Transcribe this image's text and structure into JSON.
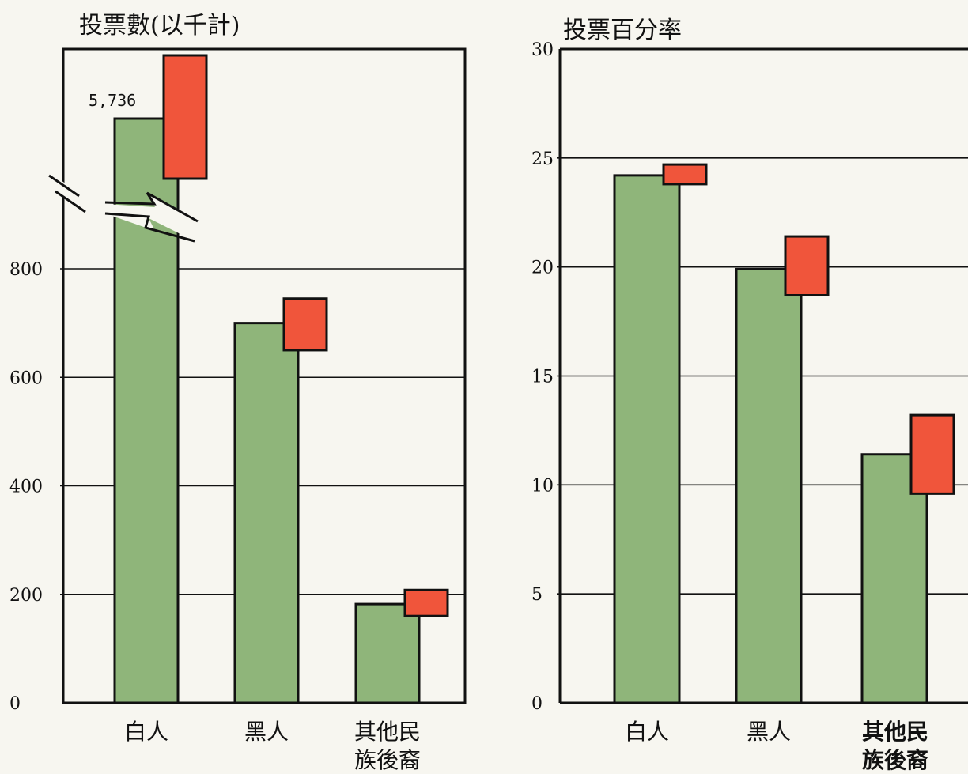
{
  "colors": {
    "green_bar": "#8fb57a",
    "red_box": "#f0553b",
    "frame": "#111111",
    "paper": "#f7f6f0"
  },
  "chart_data": [
    {
      "type": "bar",
      "title": "投票數(以千計)",
      "categories": [
        "白人",
        "黑人",
        "其他民族後裔"
      ],
      "category_lines": [
        [
          "白人"
        ],
        [
          "黑人"
        ],
        [
          "其他民",
          "族後裔"
        ]
      ],
      "yticks": [
        0,
        200,
        400,
        600,
        800
      ],
      "ylim": [
        0,
        1000
      ],
      "axis_break": true,
      "series": [
        {
          "values": [
            5736,
            700,
            182
          ]
        },
        {
          "range": [
            [
              null,
              null
            ],
            [
              650,
              745
            ],
            [
              160,
              208
            ]
          ]
        }
      ],
      "data_labels": [
        "5,736",
        "",
        ""
      ],
      "grid": true
    },
    {
      "type": "bar",
      "title": "投票百分率",
      "categories": [
        "白人",
        "黑人",
        "其他民族後裔"
      ],
      "category_lines": [
        [
          "白人"
        ],
        [
          "黑人"
        ],
        [
          "其他民",
          "族後裔"
        ]
      ],
      "yticks": [
        0,
        5,
        10,
        15,
        20,
        25,
        30
      ],
      "ylim": [
        0,
        30
      ],
      "series": [
        {
          "values": [
            24.2,
            19.9,
            11.4
          ]
        },
        {
          "range": [
            [
              23.8,
              24.7
            ],
            [
              18.7,
              21.4
            ],
            [
              9.6,
              13.2
            ]
          ]
        }
      ],
      "grid": true
    }
  ]
}
